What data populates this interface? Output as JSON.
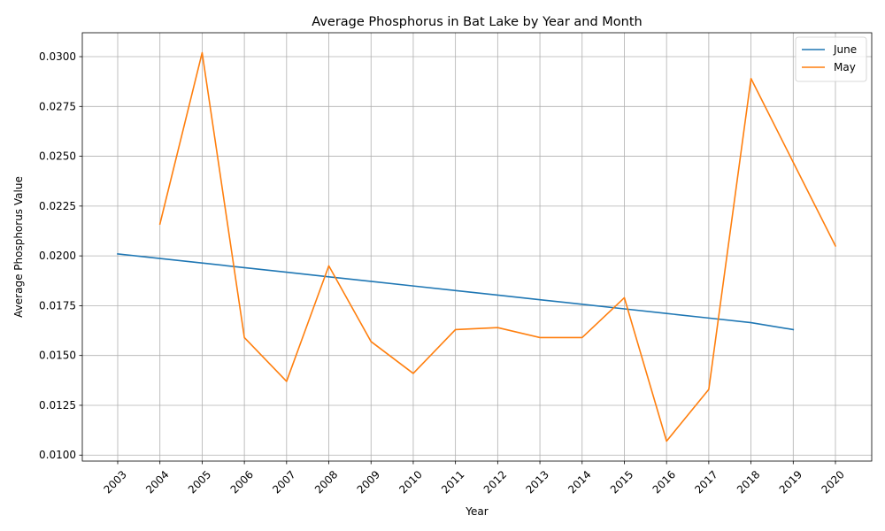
{
  "chart_data": {
    "type": "line",
    "title": "Average Phosphorus in Bat Lake by Year and Month",
    "xlabel": "Year",
    "ylabel": "Average Phosphorus Value",
    "categories": [
      "2003",
      "2004",
      "2005",
      "2006",
      "2007",
      "2008",
      "2009",
      "2010",
      "2011",
      "2012",
      "2013",
      "2014",
      "2015",
      "2016",
      "2017",
      "2018",
      "2019",
      "2020"
    ],
    "ylim": [
      0.0097,
      0.0312
    ],
    "yticks": [
      "0.0100",
      "0.0125",
      "0.0150",
      "0.0175",
      "0.0200",
      "0.0225",
      "0.0250",
      "0.0275",
      "0.0300"
    ],
    "grid": true,
    "legend_position": "top-right",
    "series": [
      {
        "name": "June",
        "color": "#1f77b4",
        "values": [
          0.0201,
          0.01987,
          0.01964,
          0.01941,
          0.01918,
          0.01895,
          0.01872,
          0.01849,
          0.01826,
          0.01803,
          0.0178,
          0.01757,
          0.01734,
          0.01711,
          0.01688,
          0.01665,
          0.0163,
          null
        ]
      },
      {
        "name": "May",
        "color": "#ff7f0e",
        "values": [
          null,
          0.0216,
          0.0302,
          0.0159,
          0.0137,
          0.0195,
          0.0157,
          0.0141,
          0.0163,
          0.0164,
          0.0159,
          0.0159,
          0.0179,
          0.0107,
          0.0133,
          0.0289,
          0.0247,
          0.0205
        ]
      }
    ]
  }
}
